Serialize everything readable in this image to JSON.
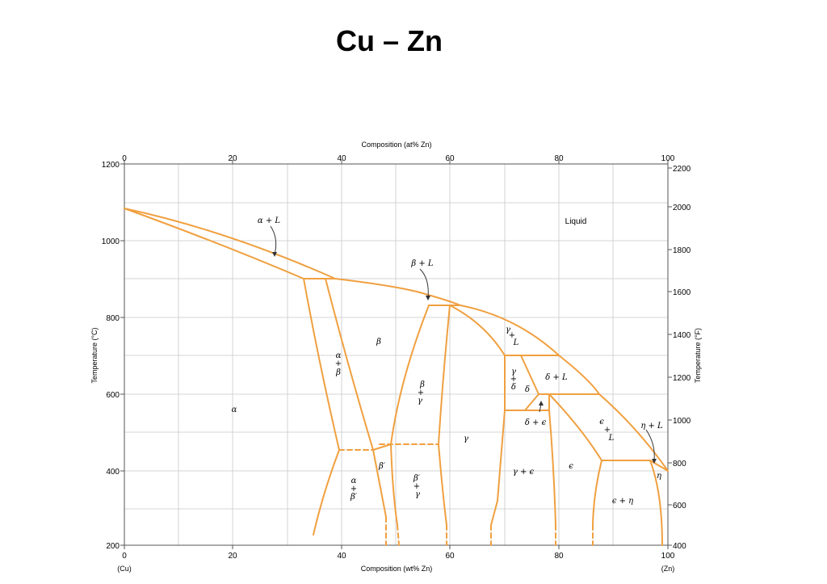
{
  "title": "Cu – Zn",
  "axes": {
    "top_title": "Composition (at% Zn)",
    "bottom_title": "Composition (wt% Zn)",
    "left_title": "Temperature (°C)",
    "right_title": "Temperature (°F)",
    "top_ticks": [
      "0",
      "20",
      "40",
      "60",
      "80",
      "100"
    ],
    "bottom_ticks": [
      "0",
      "20",
      "40",
      "60",
      "80",
      "100"
    ],
    "left_ticks": [
      "1200",
      "1000",
      "800",
      "600",
      "400",
      "200"
    ],
    "right_ticks": [
      "2200",
      "2000",
      "1800",
      "1600",
      "1400",
      "1200",
      "1000",
      "800",
      "600",
      "400"
    ],
    "bottom_left_end": "(Cu)",
    "bottom_right_end": "(Zn)"
  },
  "regions": {
    "liquid": "Liquid",
    "alpha_L": "α + L",
    "beta_L": "β + L",
    "beta": "β",
    "alpha": "α",
    "alpha_beta_1": "α",
    "alpha_beta_2": "+",
    "alpha_beta_3": "β",
    "beta_gamma_1": "β",
    "beta_gamma_2": "+",
    "beta_gamma_3": "γ",
    "gamma": "γ",
    "gamma_L_1": "γ",
    "gamma_L_2": "+",
    "gamma_L_3": "L",
    "gamma_delta_1": "γ",
    "gamma_delta_2": "+",
    "gamma_delta_3": "δ",
    "delta": "δ",
    "delta_L": "δ + L",
    "delta_eps": "δ + ϵ",
    "eps_L_1": "ϵ",
    "eps_L_2": "+",
    "eps_L_3": "L",
    "eta_L": "η + L",
    "eta": "η",
    "eps": "ϵ",
    "gamma_eps": "γ + ϵ",
    "eps_eta": "ϵ + η",
    "betap": "β′",
    "alpha_betap_1": "α",
    "alpha_betap_2": "+",
    "alpha_betap_3": "β′",
    "betap_gamma_1": "β′",
    "betap_gamma_2": "+",
    "betap_gamma_3": "γ"
  }
}
